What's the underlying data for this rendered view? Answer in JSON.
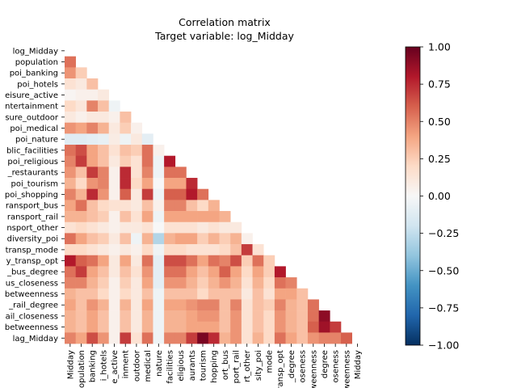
{
  "chart_data": {
    "type": "heatmap",
    "title": "Correlation matrix",
    "subtitle": "Target variable: log_Midday",
    "mask": "upper-triangle (lower triangle shown)",
    "colormap": "RdBu_r",
    "vmin": -1.0,
    "vmax": 1.0,
    "colorbar_ticks": [
      "1.00",
      "0.75",
      "0.50",
      "0.25",
      "0.00",
      "−0.25",
      "−0.50",
      "−0.75",
      "−1.00"
    ],
    "colorbar_tick_values": [
      1.0,
      0.75,
      0.5,
      0.25,
      0.0,
      -0.25,
      -0.5,
      -0.75,
      -1.0
    ],
    "y_tick_labels": [
      "log_Midday",
      "population",
      "poi_banking",
      "poi_hotels",
      "eisure_active",
      "ntertainment",
      "sure_outdoor",
      "poi_medical",
      "poi_nature",
      "blic_facilities",
      "poi_religious",
      "_restaurants",
      "poi_tourism",
      "poi_shopping",
      "ransport_bus",
      "ransport_rail",
      "nsport_other",
      "diversity_poi",
      "transp_mode",
      "y_transp_opt",
      "_bus_degree",
      "us_closeness",
      "betweenness",
      "_rail_degree",
      "ail_closeness",
      "betweenness",
      "lag_Midday"
    ],
    "x_tick_labels": [
      "Midday",
      "opulation",
      "banking",
      "i_hotels",
      "e_active",
      "inment",
      "outdoor",
      "medical",
      "nature",
      "facilities",
      "eligious",
      "aurants",
      "tourism",
      "hopping",
      "ort_bus",
      "port_rail",
      "rt_other",
      "sity_poi",
      "mode",
      "ransp_opt",
      "_degree",
      "oseness",
      "weenness",
      "degree",
      "oseness",
      "weenness",
      "Midday"
    ],
    "matrix": [
      [],
      [
        0.55
      ],
      [
        0.45,
        0.25
      ],
      [
        0.15,
        0.1,
        0.3
      ],
      [
        0.02,
        0.05,
        0.05,
        0.1
      ],
      [
        0.2,
        0.12,
        0.5,
        0.3,
        -0.05
      ],
      [
        0.1,
        0.05,
        0.1,
        0.1,
        0.05,
        0.3
      ],
      [
        0.45,
        0.4,
        0.5,
        0.35,
        0.1,
        0.25,
        0.05
      ],
      [
        -0.12,
        -0.12,
        -0.1,
        -0.08,
        0.08,
        -0.05,
        0.1,
        -0.1
      ],
      [
        0.55,
        0.65,
        0.4,
        0.3,
        0.15,
        0.3,
        0.25,
        0.55,
        0.05
      ],
      [
        0.5,
        0.7,
        0.4,
        0.3,
        0.1,
        0.25,
        0.15,
        0.55,
        -0.05,
        0.8
      ],
      [
        0.45,
        0.3,
        0.7,
        0.5,
        0.05,
        0.75,
        0.15,
        0.5,
        -0.05,
        0.55,
        0.55
      ],
      [
        0.35,
        0.2,
        0.45,
        0.5,
        0.05,
        0.75,
        0.2,
        0.4,
        0.0,
        0.4,
        0.4,
        0.75
      ],
      [
        0.5,
        0.35,
        0.75,
        0.45,
        0.05,
        0.6,
        0.1,
        0.7,
        -0.05,
        0.6,
        0.6,
        0.8,
        0.55
      ],
      [
        0.4,
        0.55,
        0.3,
        0.2,
        0.15,
        0.15,
        0.1,
        0.3,
        0.05,
        0.5,
        0.5,
        0.3,
        0.2,
        0.35
      ],
      [
        0.35,
        0.35,
        0.3,
        0.25,
        0.05,
        0.3,
        0.15,
        0.4,
        -0.05,
        0.4,
        0.4,
        0.4,
        0.4,
        0.4,
        0.35
      ],
      [
        0.15,
        0.2,
        0.15,
        0.1,
        0.05,
        0.1,
        0.1,
        0.15,
        0.0,
        0.15,
        0.15,
        0.15,
        0.1,
        0.15,
        0.1,
        0.1
      ],
      [
        0.55,
        0.4,
        0.3,
        0.25,
        0.1,
        0.3,
        -0.05,
        0.35,
        -0.3,
        0.35,
        0.4,
        0.4,
        0.25,
        0.35,
        0.25,
        0.35,
        0.05
      ],
      [
        0.2,
        0.2,
        0.15,
        0.1,
        0.05,
        0.1,
        0.05,
        0.2,
        -0.05,
        0.2,
        0.2,
        0.15,
        0.15,
        0.15,
        0.2,
        0.3,
        0.7,
        0.15
      ],
      [
        0.8,
        0.6,
        0.55,
        0.4,
        0.1,
        0.4,
        0.1,
        0.55,
        -0.1,
        0.65,
        0.65,
        0.55,
        0.4,
        0.55,
        0.5,
        0.65,
        0.25,
        0.55,
        0.25
      ],
      [
        0.55,
        0.7,
        0.4,
        0.3,
        0.1,
        0.3,
        0.15,
        0.45,
        -0.1,
        0.55,
        0.55,
        0.4,
        0.3,
        0.4,
        0.6,
        0.4,
        0.2,
        0.4,
        0.25,
        0.8
      ],
      [
        0.5,
        0.5,
        0.35,
        0.25,
        0.05,
        0.25,
        0.1,
        0.4,
        -0.1,
        0.45,
        0.45,
        0.35,
        0.25,
        0.35,
        0.45,
        0.35,
        0.15,
        0.35,
        0.2,
        0.55,
        0.5
      ],
      [
        0.35,
        0.3,
        0.3,
        0.2,
        0.05,
        0.2,
        0.1,
        0.3,
        -0.05,
        0.3,
        0.3,
        0.3,
        0.2,
        0.3,
        0.3,
        0.3,
        0.1,
        0.3,
        0.15,
        0.4,
        0.4,
        0.3
      ],
      [
        0.4,
        0.3,
        0.45,
        0.35,
        0.05,
        0.35,
        0.1,
        0.4,
        -0.05,
        0.4,
        0.4,
        0.45,
        0.5,
        0.5,
        0.3,
        0.5,
        0.15,
        0.3,
        0.25,
        0.5,
        0.35,
        0.3,
        0.55
      ],
      [
        0.35,
        0.3,
        0.4,
        0.3,
        0.05,
        0.3,
        0.1,
        0.35,
        -0.05,
        0.35,
        0.35,
        0.4,
        0.45,
        0.45,
        0.3,
        0.45,
        0.15,
        0.3,
        0.2,
        0.45,
        0.35,
        0.3,
        0.55,
        0.9
      ],
      [
        0.35,
        0.3,
        0.4,
        0.3,
        0.05,
        0.3,
        0.1,
        0.35,
        -0.05,
        0.35,
        0.35,
        0.4,
        0.4,
        0.4,
        0.3,
        0.45,
        0.15,
        0.3,
        0.2,
        0.45,
        0.35,
        0.3,
        0.6,
        0.85,
        0.7
      ],
      [
        0.5,
        0.4,
        0.65,
        0.45,
        0.05,
        0.7,
        0.15,
        0.55,
        -0.05,
        0.5,
        0.5,
        0.7,
        0.95,
        0.75,
        0.35,
        0.45,
        0.15,
        0.35,
        0.2,
        0.55,
        0.4,
        0.3,
        0.45,
        0.5,
        0.5,
        0.6
      ]
    ]
  }
}
